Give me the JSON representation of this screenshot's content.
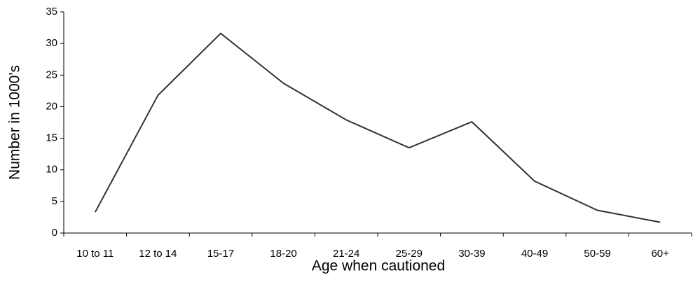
{
  "chart_data": {
    "type": "line",
    "x_label": "Age when cautioned",
    "y_label": "Number in 1000's",
    "categories": [
      "10 to 11",
      "12 to 14",
      "15-17",
      "18-20",
      "21-24",
      "25-29",
      "30-39",
      "40-49",
      "50-59",
      "60+"
    ],
    "series": [
      {
        "color": "#333333",
        "values": [
          3.3,
          21.8,
          31.6,
          23.7,
          17.9,
          13.5,
          17.6,
          8.2,
          3.6,
          1.7
        ]
      }
    ],
    "ylim": [
      0,
      35
    ],
    "yticks": [
      0,
      5,
      10,
      15,
      20,
      25,
      30,
      35
    ],
    "grid": false
  }
}
